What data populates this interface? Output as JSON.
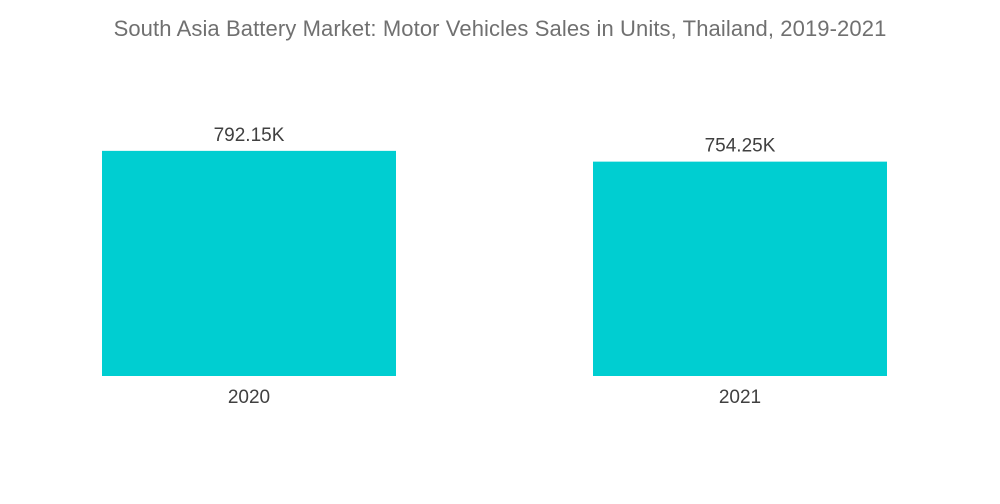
{
  "chart_data": {
    "type": "bar",
    "title": "South Asia Battery Market: Motor Vehicles Sales in Units, Thailand, 2019-2021",
    "categories": [
      "2020",
      "2021"
    ],
    "values": [
      792.15,
      754.25
    ],
    "value_labels": [
      "792.15K",
      "754.25K"
    ],
    "ylim": [
      0,
      950
    ],
    "grid": false,
    "bar_color": "#00CED1"
  }
}
